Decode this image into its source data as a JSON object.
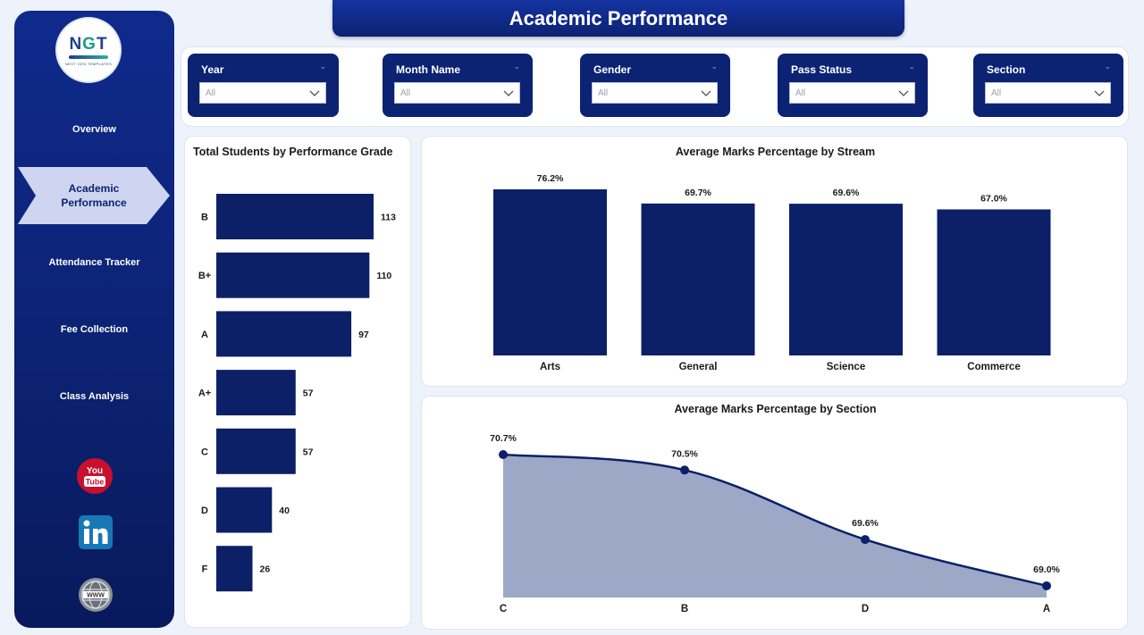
{
  "header": {
    "title": "Academic Performance"
  },
  "logo": {
    "text": "NGT",
    "subtitle": "NEXT GEN TEMPLATES"
  },
  "nav": {
    "items": [
      {
        "label": "Overview"
      },
      {
        "label_line1": "Academic",
        "label_line2": "Performance"
      },
      {
        "label": "Attendance Tracker"
      },
      {
        "label": "Fee Collection"
      },
      {
        "label": "Class Analysis"
      }
    ],
    "active_index": 1
  },
  "social": [
    "youtube-icon",
    "linkedin-icon",
    "website-globe-icon"
  ],
  "filters": [
    {
      "title": "Year",
      "value": "All"
    },
    {
      "title": "Month Name",
      "value": "All"
    },
    {
      "title": "Gender",
      "value": "All"
    },
    {
      "title": "Pass Status",
      "value": "All"
    },
    {
      "title": "Section",
      "value": "All"
    }
  ],
  "colors": {
    "navy": "#0c2273",
    "bar": "#0c2068",
    "area_fill": "#9ca8c6",
    "background": "#eef2fb"
  },
  "chart_data": [
    {
      "type": "bar",
      "orientation": "horizontal",
      "title": "Total Students by Performance Grade",
      "categories": [
        "B",
        "B+",
        "A",
        "A+",
        "C",
        "D",
        "F"
      ],
      "values": [
        113,
        110,
        97,
        57,
        57,
        40,
        26
      ],
      "data_labels": [
        "113",
        "110",
        "97",
        "57",
        "57",
        "40",
        "26"
      ],
      "xlim": [
        0,
        113
      ]
    },
    {
      "type": "bar",
      "title": "Average Marks Percentage by Stream",
      "categories": [
        "Arts",
        "General",
        "Science",
        "Commerce"
      ],
      "values": [
        76.2,
        69.7,
        69.6,
        67.0
      ],
      "data_labels": [
        "76.2%",
        "69.7%",
        "69.6%",
        "67.0%"
      ],
      "ylim": [
        0,
        76.2
      ]
    },
    {
      "type": "area",
      "title": "Average Marks Percentage by Section",
      "categories": [
        "C",
        "B",
        "D",
        "A"
      ],
      "values": [
        70.7,
        70.5,
        69.6,
        69.0
      ],
      "data_labels": [
        "70.7%",
        "70.5%",
        "69.6%",
        "69.0%"
      ],
      "ylim": [
        68.93,
        70.7
      ]
    }
  ]
}
